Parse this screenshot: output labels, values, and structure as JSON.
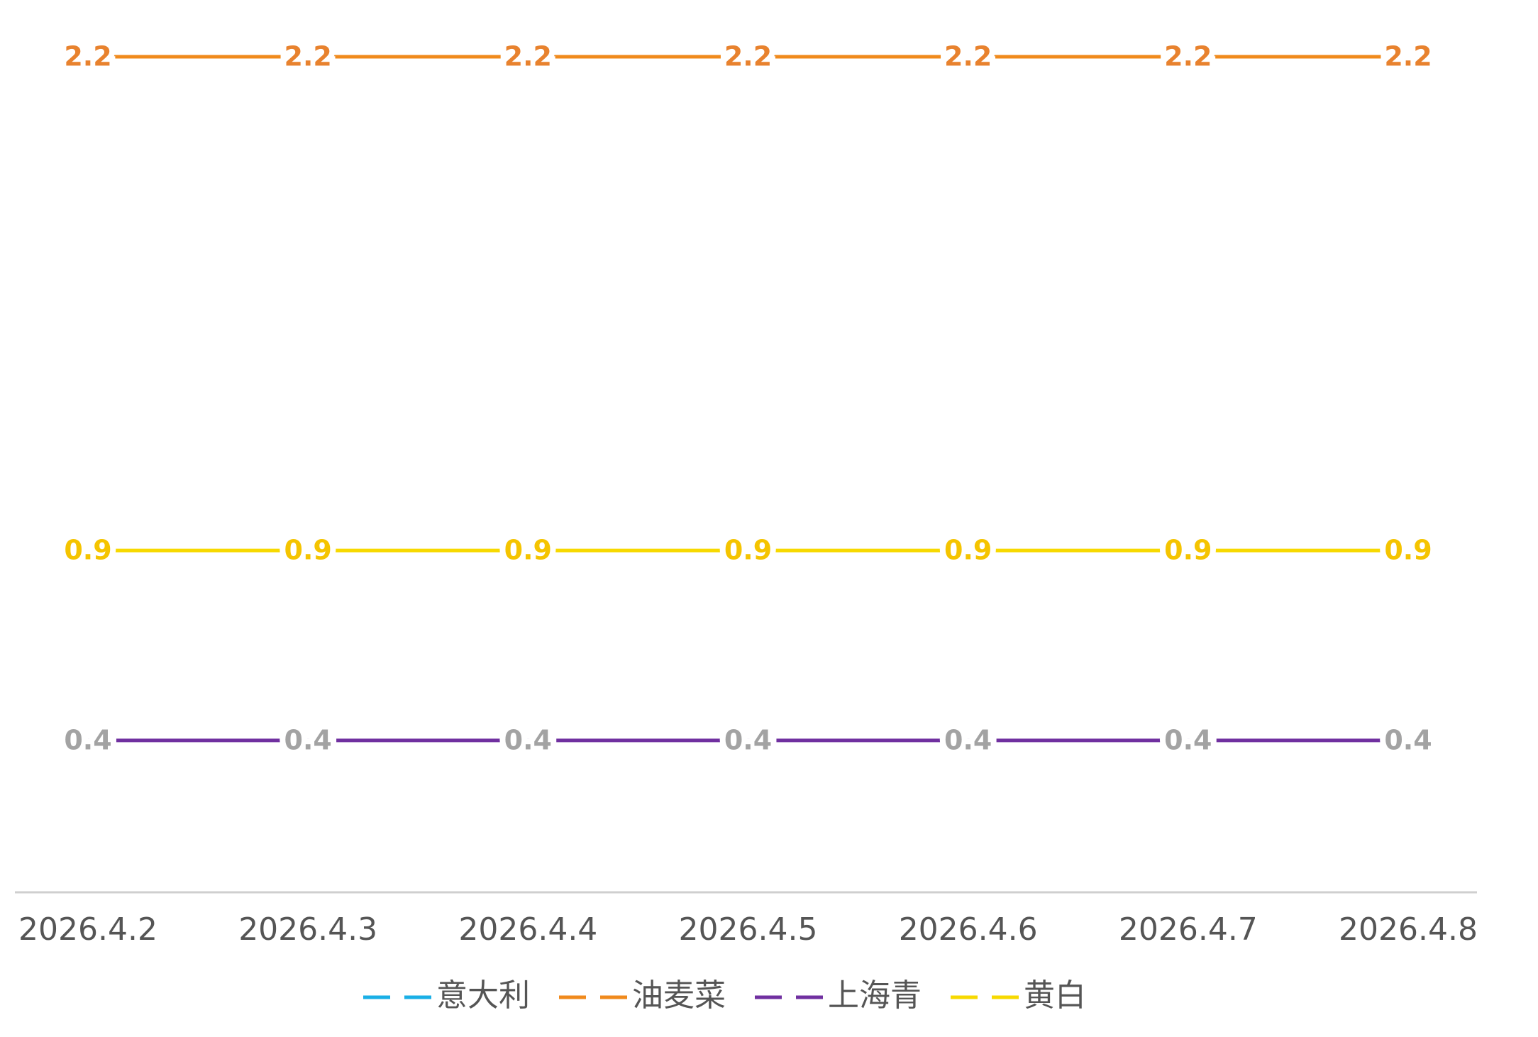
{
  "chart_data": {
    "type": "line",
    "x": [
      "2026.4.2",
      "2026.4.3",
      "2026.4.4",
      "2026.4.5",
      "2026.4.6",
      "2026.4.7",
      "2026.4.8"
    ],
    "series": [
      {
        "name": "意大利",
        "color": "#1aafe6",
        "values": [
          null,
          null,
          null,
          null,
          null,
          null,
          null
        ]
      },
      {
        "name": "油麦菜",
        "color": "#f08a1c",
        "label_color": "#e8822e",
        "values": [
          2.2,
          2.2,
          2.2,
          2.2,
          2.2,
          2.2,
          2.2
        ]
      },
      {
        "name": "上海青",
        "color": "#7030a0",
        "label_color": "#a3a3a3",
        "values": [
          0.4,
          0.4,
          0.4,
          0.4,
          0.4,
          0.4,
          0.4
        ]
      },
      {
        "name": "黄白",
        "color": "#f7d900",
        "label_color": "#f5c400",
        "values": [
          0.9,
          0.9,
          0.9,
          0.9,
          0.9,
          0.9,
          0.9
        ]
      }
    ],
    "ylim": [
      0,
      2.2
    ]
  }
}
